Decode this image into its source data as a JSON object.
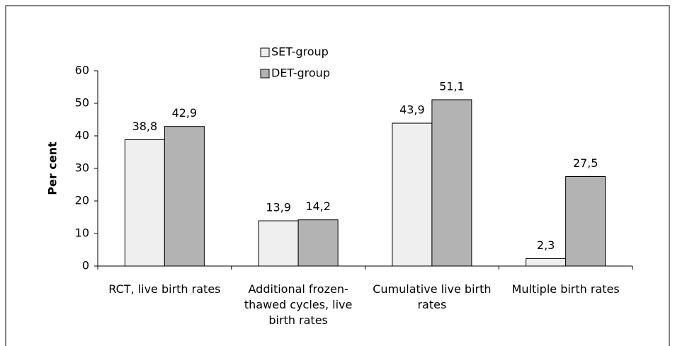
{
  "chart_data": {
    "type": "bar",
    "categories": [
      "RCT, live birth rates",
      "Additional frozen-thawed cycles, live birth rates",
      "Cumulative live birth rates",
      "Multiple birth rates"
    ],
    "series": [
      {
        "name": "SET-group",
        "color": "#efefef",
        "values": [
          38.8,
          13.9,
          43.9,
          2.3
        ],
        "value_labels": [
          "38,8",
          "13,9",
          "43,9",
          "2,3"
        ]
      },
      {
        "name": "DET-group",
        "color": "#b3b3b3",
        "values": [
          42.9,
          14.2,
          51.1,
          27.5
        ],
        "value_labels": [
          "42,9",
          "14,2",
          "51,1",
          "27,5"
        ]
      }
    ],
    "y_label": "Per cent",
    "ylim": [
      0,
      60
    ],
    "yticks": [
      0,
      10,
      20,
      30,
      40,
      50,
      60
    ]
  }
}
